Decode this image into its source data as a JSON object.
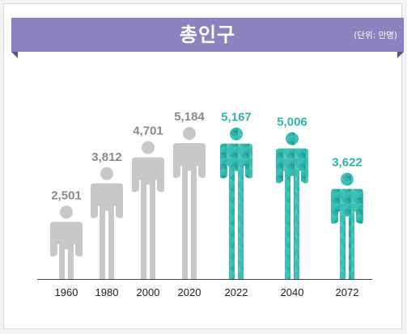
{
  "header": {
    "title": "총인구",
    "unit": "(단위: 만명)"
  },
  "colors": {
    "banner": "#8b83bf",
    "past": "#c8c8c8",
    "projected": "#2fb3aa",
    "projected_label": "#2fb3aa",
    "past_label": "#8a8a8a"
  },
  "chart_data": {
    "type": "bar",
    "title": "총인구",
    "unit": "(단위: 만명)",
    "categories": [
      "1960",
      "1980",
      "2000",
      "2020",
      "2022",
      "2040",
      "2072"
    ],
    "values": [
      2501,
      3812,
      4701,
      5184,
      5167,
      5006,
      3622
    ],
    "value_labels": [
      "2,501",
      "3,812",
      "4,701",
      "5,184",
      "5,167",
      "5,006",
      "3,622"
    ],
    "projected": [
      false,
      false,
      false,
      false,
      true,
      true,
      true
    ],
    "ylim": [
      0,
      6000
    ],
    "grid": false,
    "legend": "none"
  }
}
